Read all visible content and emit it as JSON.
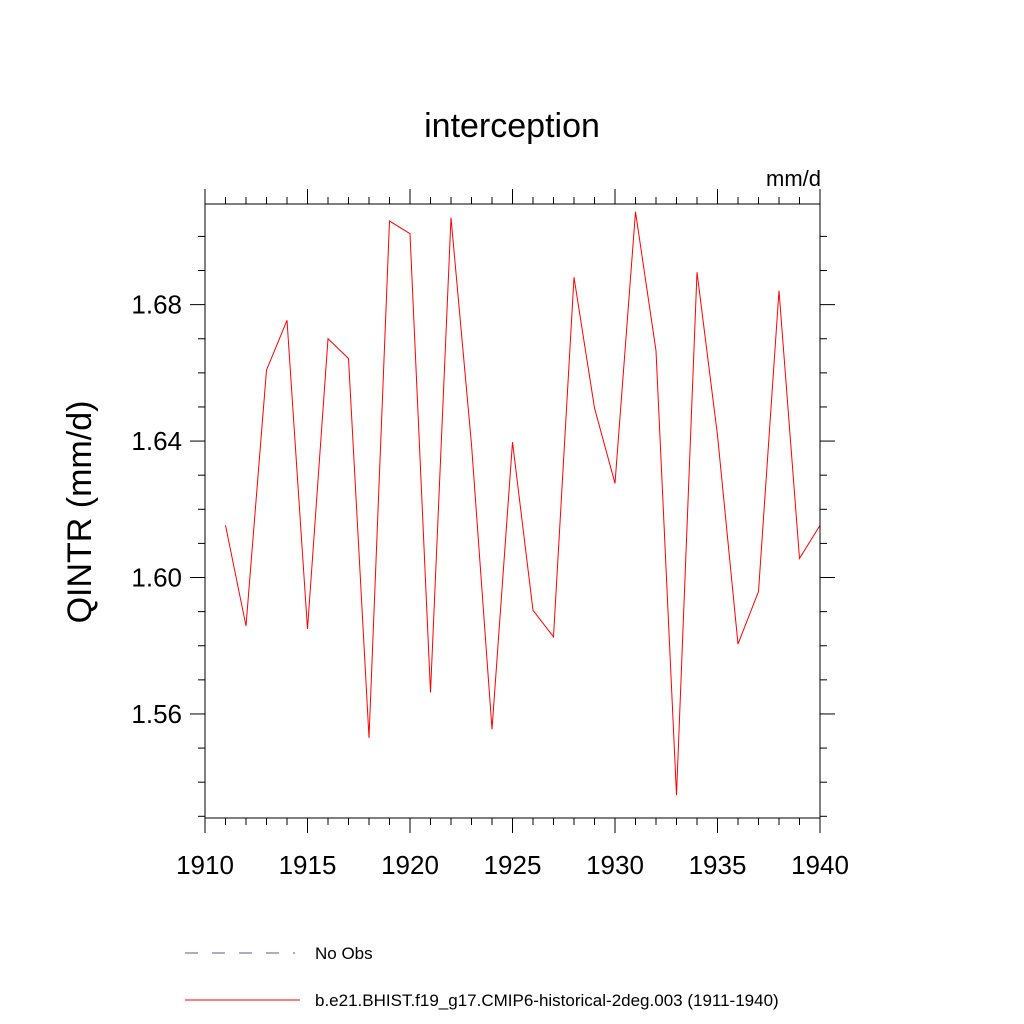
{
  "chart_data": {
    "type": "line",
    "title": "interception",
    "units": "mm/d",
    "ylabel": "QINTR  (mm/d)",
    "xlabel": "",
    "xlim": [
      1910,
      1940
    ],
    "ylim": [
      1.5295,
      1.7095
    ],
    "xticks": [
      1910,
      1915,
      1920,
      1925,
      1930,
      1935,
      1940
    ],
    "yticks": [
      1.56,
      1.6,
      1.64,
      1.68
    ],
    "ytick_labels": [
      "1.56",
      "1.60",
      "1.64",
      "1.68"
    ],
    "x_minor_step": 1,
    "y_minor_step": 0.01,
    "grid": false,
    "legend_position": "bottom",
    "series": [
      {
        "name": "No Obs",
        "color": "#5a5aa0",
        "style": "dashed",
        "x": [],
        "values": []
      },
      {
        "name": "b.e21.BHIST.f19_g17.CMIP6-historical-2deg.003 (1911-1940)",
        "color": "#ff0000",
        "style": "solid",
        "x": [
          1911,
          1912,
          1913,
          1914,
          1915,
          1916,
          1917,
          1918,
          1919,
          1920,
          1921,
          1922,
          1923,
          1924,
          1925,
          1926,
          1927,
          1928,
          1929,
          1930,
          1931,
          1932,
          1933,
          1934,
          1935,
          1936,
          1937,
          1938,
          1939,
          1940
        ],
        "values": [
          1.6153,
          1.5858,
          1.6608,
          1.6754,
          1.5849,
          1.67,
          1.6642,
          1.553,
          1.7045,
          1.7008,
          1.5663,
          1.7055,
          1.639,
          1.5555,
          1.6397,
          1.5904,
          1.5826,
          1.688,
          1.6497,
          1.6276,
          1.7072,
          1.6665,
          1.5362,
          1.6895,
          1.6417,
          1.5805,
          1.5959,
          1.6841,
          1.6056,
          1.6153
        ]
      }
    ]
  }
}
